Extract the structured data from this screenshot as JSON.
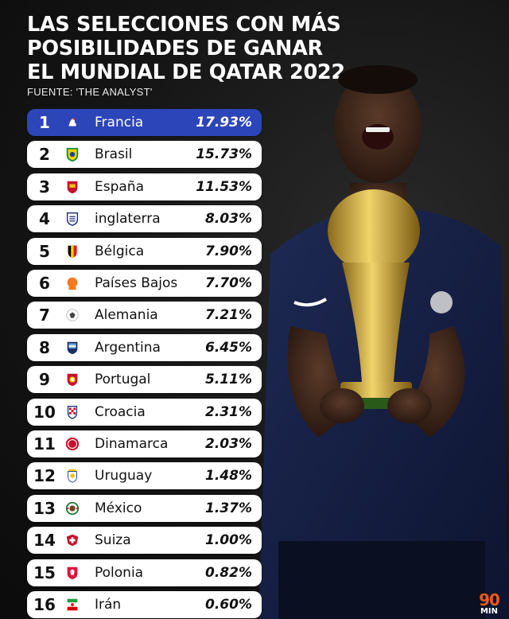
{
  "title_lines": [
    "LAS SELECCIONES CON MÁS",
    "POSIBILIDADES DE GANAR",
    "EL MUNDIAL DE QATAR 2022"
  ],
  "source": "FUENTE: 'THE ANALYST'",
  "colors": {
    "highlight": "#2c45b8",
    "row_bg": "#ffffff",
    "logo_accent": "#e85a1c"
  },
  "rankings": [
    {
      "rank": "1",
      "country": "Francia",
      "pct": "17.93%",
      "flag": "rooster-crest-icon"
    },
    {
      "rank": "2",
      "country": "Brasil",
      "pct": "15.73%",
      "flag": "brazil-crest-icon"
    },
    {
      "rank": "3",
      "country": "España",
      "pct": "11.53%",
      "flag": "spain-crest-icon"
    },
    {
      "rank": "4",
      "country": "inglaterra",
      "pct": "8.03%",
      "flag": "england-crest-icon"
    },
    {
      "rank": "5",
      "country": "Bélgica",
      "pct": "7.90%",
      "flag": "belgium-crest-icon"
    },
    {
      "rank": "6",
      "country": "Países Bajos",
      "pct": "7.70%",
      "flag": "netherlands-crest-icon"
    },
    {
      "rank": "7",
      "country": "Alemania",
      "pct": "7.21%",
      "flag": "germany-crest-icon"
    },
    {
      "rank": "8",
      "country": "Argentina",
      "pct": "6.45%",
      "flag": "argentina-crest-icon"
    },
    {
      "rank": "9",
      "country": "Portugal",
      "pct": "5.11%",
      "flag": "portugal-crest-icon"
    },
    {
      "rank": "10",
      "country": "Croacia",
      "pct": "2.31%",
      "flag": "croatia-crest-icon"
    },
    {
      "rank": "11",
      "country": "Dinamarca",
      "pct": "2.03%",
      "flag": "denmark-crest-icon"
    },
    {
      "rank": "12",
      "country": "Uruguay",
      "pct": "1.48%",
      "flag": "uruguay-crest-icon"
    },
    {
      "rank": "13",
      "country": "México",
      "pct": "1.37%",
      "flag": "mexico-crest-icon"
    },
    {
      "rank": "14",
      "country": "Suiza",
      "pct": "1.00%",
      "flag": "switzerland-crest-icon"
    },
    {
      "rank": "15",
      "country": "Polonia",
      "pct": "0.82%",
      "flag": "poland-crest-icon"
    },
    {
      "rank": "16",
      "country": "Irán",
      "pct": "0.60%",
      "flag": "iran-crest-icon"
    }
  ],
  "logo": {
    "number": "90",
    "word": "MIN"
  }
}
